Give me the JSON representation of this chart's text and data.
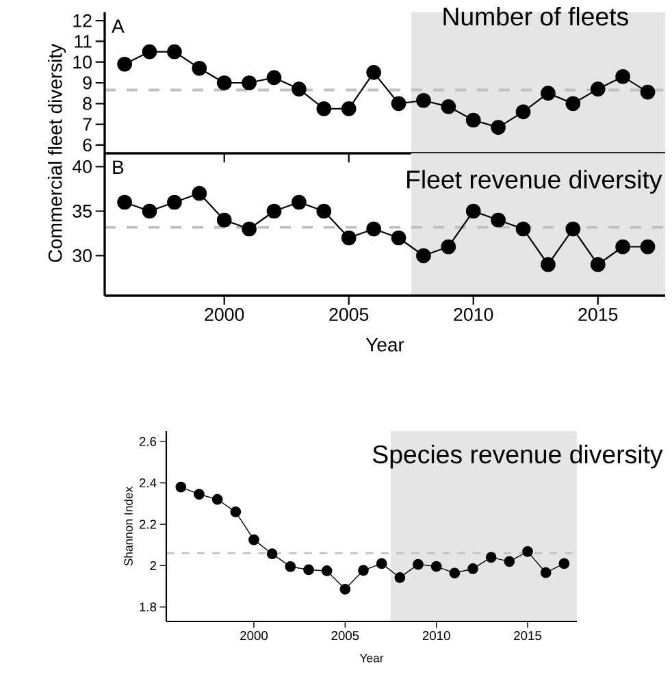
{
  "chart_data": [
    {
      "type": "line",
      "title": "Number of fleets",
      "annotations": [
        "A"
      ],
      "ylabel": "Commercial fleet diversity",
      "tick_labels": "y",
      "marker": "circle",
      "line_style": "solid",
      "color": "#000000",
      "x": [
        1996,
        1997,
        1998,
        1999,
        2000,
        2001,
        2002,
        2003,
        2004,
        2005,
        2006,
        2007,
        2008,
        2009,
        2010,
        2011,
        2012,
        2013,
        2014,
        2015,
        2016,
        2017
      ],
      "values": [
        9.9,
        10.5,
        10.5,
        9.7,
        9.0,
        9.0,
        9.25,
        8.7,
        7.75,
        7.75,
        9.5,
        8.0,
        8.15,
        7.85,
        7.2,
        6.85,
        7.6,
        8.5,
        8.0,
        8.7,
        9.3,
        8.55
      ],
      "xlim": [
        1995.2,
        2017.7
      ],
      "ylim": [
        5.6,
        12.4
      ],
      "xticks": [
        2000,
        2005,
        2010,
        2015
      ],
      "yticks": [
        6,
        7,
        8,
        9,
        10,
        11,
        12
      ],
      "ref_lines": [
        {
          "axis": "y",
          "value": 8.65,
          "color": "#c0c0c0",
          "line_style": "dashed"
        }
      ],
      "bands": [
        {
          "axis": "x",
          "from": 2007.5,
          "to": 2017.7,
          "color": "#e5e5e5"
        }
      ]
    },
    {
      "type": "line",
      "title": "Fleet revenue diversity",
      "annotations": [
        "B"
      ],
      "xlabel": "Year",
      "marker": "circle",
      "line_style": "solid",
      "color": "#000000",
      "x": [
        1996,
        1997,
        1998,
        1999,
        2000,
        2001,
        2002,
        2003,
        2004,
        2005,
        2006,
        2007,
        2008,
        2009,
        2010,
        2011,
        2012,
        2013,
        2014,
        2015,
        2016,
        2017
      ],
      "values": [
        36,
        35,
        36,
        37,
        34,
        33,
        35,
        36,
        35,
        32,
        33,
        32,
        30,
        31,
        35,
        34,
        33,
        29,
        33,
        29,
        31,
        31
      ],
      "xlim": [
        1995.2,
        2017.7
      ],
      "ylim": [
        25.5,
        41.5
      ],
      "xticks": [
        2000,
        2005,
        2010,
        2015
      ],
      "yticks": [
        30,
        35,
        40
      ],
      "ref_lines": [
        {
          "axis": "y",
          "value": 33.2,
          "color": "#c0c0c0",
          "line_style": "dashed"
        }
      ],
      "bands": [
        {
          "axis": "x",
          "from": 2007.5,
          "to": 2017.7,
          "color": "#e5e5e5"
        }
      ]
    },
    {
      "type": "line",
      "title": "Species revenue diversity",
      "xlabel": "Year",
      "ylabel": "Shannon Index",
      "marker": "circle",
      "line_style": "solid",
      "color": "#000000",
      "x": [
        1996,
        1997,
        1998,
        1999,
        2000,
        2001,
        2002,
        2003,
        2004,
        2005,
        2006,
        2007,
        2008,
        2009,
        2010,
        2011,
        2012,
        2013,
        2014,
        2015,
        2016,
        2017
      ],
      "values": [
        2.38,
        2.345,
        2.32,
        2.26,
        2.125,
        2.057,
        1.995,
        1.98,
        1.975,
        1.886,
        1.977,
        2.01,
        1.942,
        2.006,
        1.996,
        1.964,
        1.985,
        2.04,
        2.02,
        2.068,
        1.966,
        2.01
      ],
      "xlim": [
        1995.2,
        2017.7
      ],
      "ylim": [
        1.73,
        2.65
      ],
      "xticks": [
        2000,
        2005,
        2010,
        2015
      ],
      "yticks": [
        1.8,
        {
          "value": 2,
          "label": "2"
        },
        2.2,
        2.4,
        2.6
      ],
      "ref_lines": [
        {
          "axis": "y",
          "value": 2.06,
          "color": "#c0c0c0",
          "line_style": "dashed"
        }
      ],
      "bands": [
        {
          "axis": "x",
          "from": 2007.5,
          "to": 2017.7,
          "color": "#e5e5e5"
        }
      ]
    }
  ]
}
